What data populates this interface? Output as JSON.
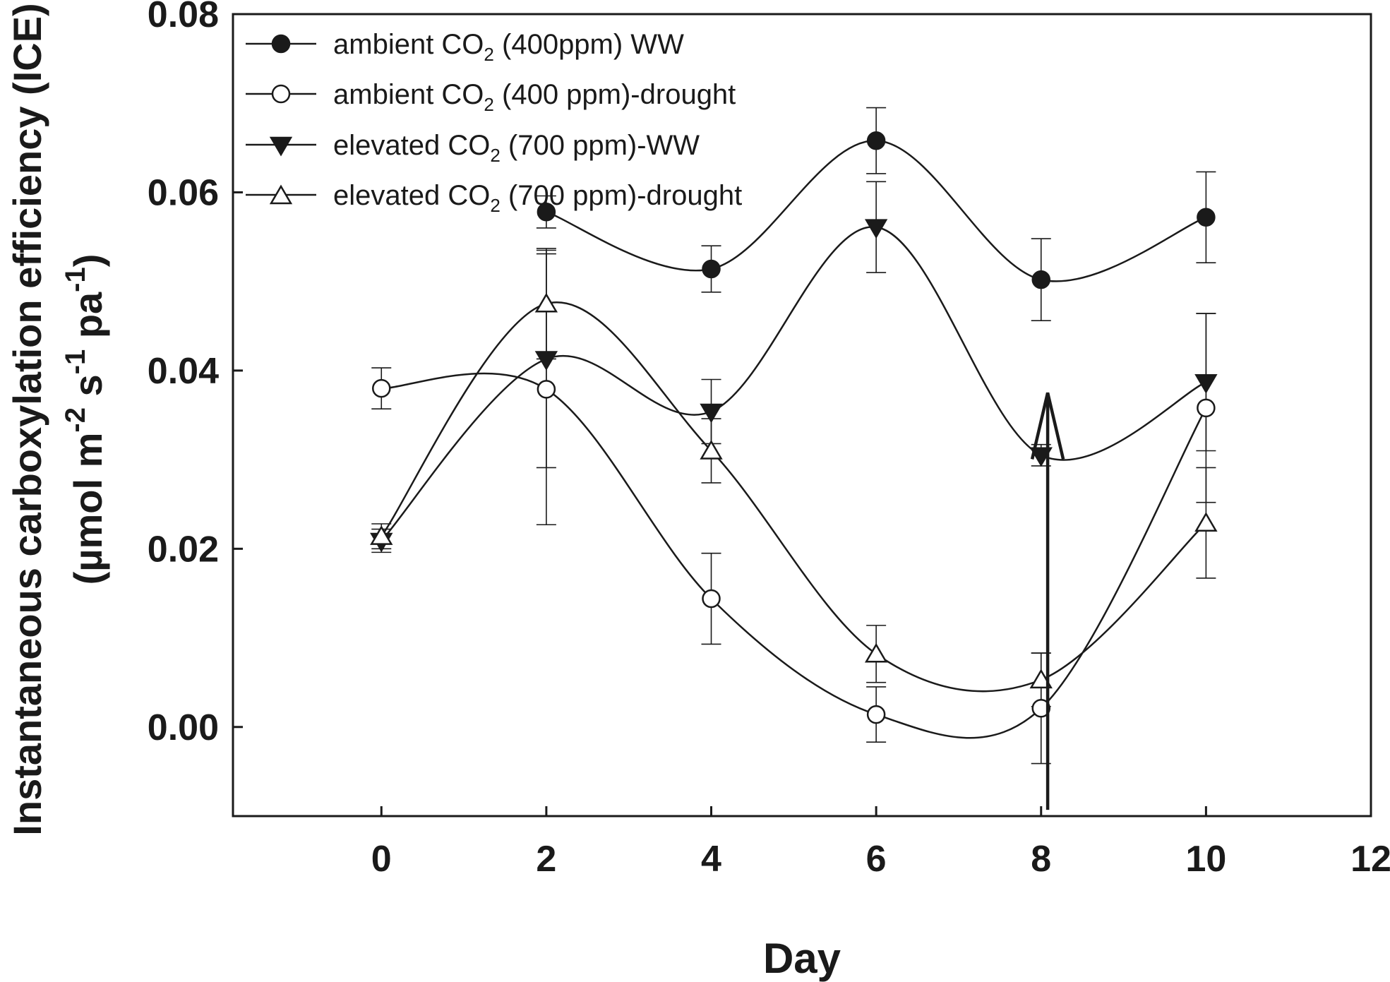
{
  "chart_data": {
    "type": "line",
    "title": "",
    "xlabel": "Day",
    "ylabel_line1": "Instantaneous carboxylation efficiency (ICE)",
    "ylabel_line2": {
      "pre": "(µmol m",
      "exp1": "-2",
      "mid1": " s",
      "exp2": "-1",
      "mid2": " pa",
      "exp3": "-1",
      "post": ")"
    },
    "xlim": [
      -1.8,
      12
    ],
    "ylim": [
      -0.01,
      0.08
    ],
    "xticks": [
      0,
      2,
      4,
      6,
      8,
      10,
      12
    ],
    "xtick_labels": [
      "0",
      "2",
      "4",
      "6",
      "8",
      "10",
      "12"
    ],
    "yticks": [
      0.0,
      0.02,
      0.04,
      0.06,
      0.08
    ],
    "ytick_labels": [
      "0.00",
      "0.02",
      "0.04",
      "0.06",
      "0.08"
    ],
    "legend_position": "top-left",
    "series": [
      {
        "name": "ambient CO2 (400ppm) WW",
        "legend": {
          "pre": "ambient CO",
          "sub": "2",
          "post": " (400ppm) WW"
        },
        "marker": "filled-circle",
        "x": [
          2,
          4,
          6,
          8,
          10
        ],
        "values": [
          0.0578,
          0.0514,
          0.0658,
          0.0502,
          0.0572
        ],
        "errors": [
          0.0018,
          0.0026,
          0.0037,
          0.0046,
          0.0051
        ]
      },
      {
        "name": "ambient CO2 (400 ppm)-drought",
        "legend": {
          "pre": "ambient CO",
          "sub": "2",
          "post": " (400 ppm)-drought"
        },
        "marker": "open-circle",
        "x": [
          0,
          2,
          4,
          6,
          8,
          10
        ],
        "values": [
          0.038,
          0.0379,
          0.0144,
          0.0014,
          0.0021,
          0.0358
        ],
        "errors": [
          0.0023,
          0.0152,
          0.0051,
          0.0031,
          0.0062,
          0.0106
        ]
      },
      {
        "name": "elevated CO2 (700 ppm)-WW",
        "legend": {
          "pre": "elevated CO",
          "sub": "2",
          "post": " (700 ppm)-WW"
        },
        "marker": "filled-triangle-down",
        "x": [
          0,
          2,
          4,
          6,
          8,
          10
        ],
        "values": [
          0.0209,
          0.0413,
          0.0354,
          0.0561,
          0.0305,
          0.0387
        ],
        "errors": [
          0.0013,
          0.0122,
          0.0036,
          0.0051,
          0.0012,
          0.0077
        ]
      },
      {
        "name": "elevated CO2 (700 ppm)-drought",
        "legend": {
          "pre": "elevated CO",
          "sub": "2",
          "post": " (700 ppm)-drought"
        },
        "marker": "open-triangle-up",
        "x": [
          0,
          2,
          4,
          6,
          8,
          10
        ],
        "values": [
          0.0214,
          0.0475,
          0.031,
          0.0082,
          0.0053,
          0.0229
        ],
        "errors": [
          0.0014,
          0.0062,
          0.0036,
          0.0032,
          0.003,
          0.0062
        ]
      }
    ],
    "annotations": [
      {
        "type": "arrow",
        "direction": "up",
        "x": 8.08,
        "from_y": -0.0093,
        "to_y": 0.0375
      }
    ],
    "colors": {
      "ink": "#1a1a1a",
      "background": "#ffffff"
    }
  }
}
